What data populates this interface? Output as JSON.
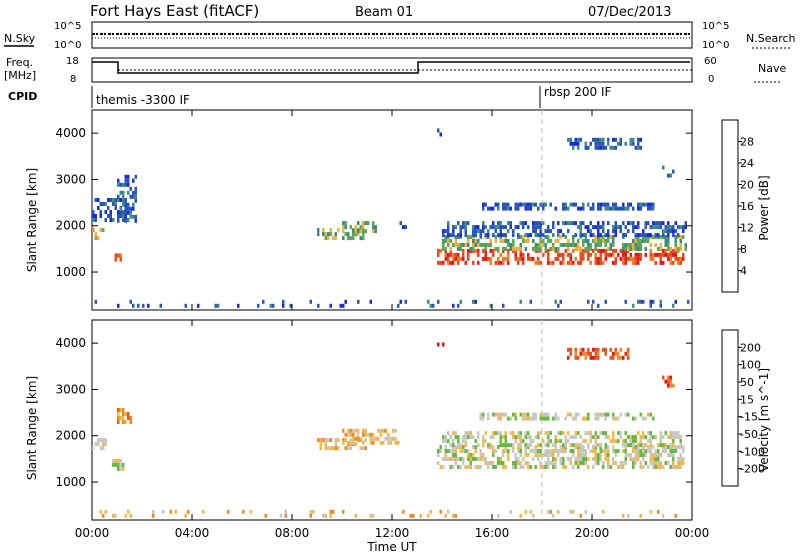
{
  "header": {
    "radar": "Fort Hays East (fitACF)",
    "beam": "Beam 01",
    "date": "07/Dec/2013"
  },
  "top_panels": {
    "nsky_label": "N.Sky",
    "nsky_ticks": [
      "10^5",
      "10^0"
    ],
    "nsearch_label": "N.Search",
    "nsearch_ticks": [
      "10^5",
      "10^0"
    ],
    "freq_label": "Freq.",
    "freq_unit": "[MHz]",
    "freq_ticks": [
      18,
      8
    ],
    "nave_label": "Nave",
    "nave_ticks": [
      60,
      0
    ],
    "cpid_label": "CPID",
    "cpid_segments": [
      {
        "label": "themis -3300 IF",
        "start": 0,
        "end": 18
      },
      {
        "label": "rbsp 200 IF",
        "start": 18,
        "end": 24
      }
    ]
  },
  "x_axis": {
    "title": "Time UT",
    "ticks": [
      "00:00",
      "04:00",
      "08:00",
      "12:00",
      "16:00",
      "20:00",
      "00:00"
    ],
    "tick_hours": [
      0,
      4,
      8,
      12,
      16,
      20,
      24
    ]
  },
  "colors": {
    "power_scale": [
      "#1a2cd8",
      "#2a55b8",
      "#3d8a86",
      "#5aa85c",
      "#f1b23a",
      "#f07d25",
      "#ec4a1c",
      "#e81818"
    ],
    "velocity_scale": [
      "#2542c4",
      "#3a8f84",
      "#66b944",
      "#c8c8c0",
      "#f5b84a",
      "#f08a2b",
      "#ea5320",
      "#e51818"
    ],
    "dashed_marker": "#bbbbbb"
  },
  "chart_data": [
    {
      "type": "heatmap",
      "name": "power",
      "ylabel": "Slant Range [km]",
      "yticks": [
        1000,
        2000,
        3000,
        4000
      ],
      "ylim": [
        180,
        4500
      ],
      "xlim": [
        0,
        24
      ],
      "colorbar": {
        "label": "Power [dB]",
        "ticks": [
          4,
          8,
          12,
          16,
          20,
          24,
          28
        ],
        "range": [
          0,
          32
        ]
      },
      "regions": [
        {
          "t0": 0.0,
          "t1": 0.5,
          "r0": 1650,
          "r1": 1950,
          "level": 4
        },
        {
          "t0": 0.0,
          "t1": 1.5,
          "r0": 2000,
          "r1": 2600,
          "level": 1
        },
        {
          "t0": 0.8,
          "t1": 1.2,
          "r0": 1200,
          "r1": 1400,
          "level": 6
        },
        {
          "t0": 1.0,
          "t1": 1.8,
          "r0": 2000,
          "r1": 3100,
          "level": 1
        },
        {
          "t0": 9.0,
          "t1": 11.0,
          "r0": 1650,
          "r1": 1950,
          "level": 3
        },
        {
          "t0": 10.0,
          "t1": 11.5,
          "r0": 1800,
          "r1": 2100,
          "level": 3
        },
        {
          "t0": 12.3,
          "t1": 12.7,
          "r0": 1900,
          "r1": 2100,
          "level": 1
        },
        {
          "t0": 13.8,
          "t1": 14.2,
          "r0": 3900,
          "r1": 4100,
          "level": 1
        },
        {
          "t0": 13.8,
          "t1": 23.8,
          "r0": 1100,
          "r1": 1500,
          "level": 6
        },
        {
          "t0": 14.0,
          "t1": 23.8,
          "r0": 1400,
          "r1": 1800,
          "level": 3
        },
        {
          "t0": 14.0,
          "t1": 23.8,
          "r0": 1700,
          "r1": 2100,
          "level": 1
        },
        {
          "t0": 15.5,
          "t1": 22.5,
          "r0": 2300,
          "r1": 2500,
          "level": 1
        },
        {
          "t0": 19.0,
          "t1": 22.0,
          "r0": 3600,
          "r1": 3900,
          "level": 1
        },
        {
          "t0": 22.8,
          "t1": 23.3,
          "r0": 3000,
          "r1": 3300,
          "level": 1
        },
        {
          "t0": 0.0,
          "t1": 24.0,
          "r0": 200,
          "r1": 400,
          "level": 1
        }
      ]
    },
    {
      "type": "heatmap",
      "name": "velocity",
      "ylabel": "Slant Range [km]",
      "yticks": [
        1000,
        2000,
        3000,
        4000
      ],
      "ylim": [
        180,
        4500
      ],
      "xlim": [
        0,
        24
      ],
      "colorbar": {
        "label": "Velocity [m s^-1]",
        "ticks": [
          200,
          100,
          50,
          15,
          -15,
          -50,
          -100,
          -200
        ],
        "range": [
          -250,
          250
        ]
      },
      "regions": [
        {
          "t0": 0.0,
          "t1": 0.7,
          "r0": 1650,
          "r1": 1950,
          "level": 3
        },
        {
          "t0": 0.8,
          "t1": 1.3,
          "r0": 1200,
          "r1": 1500,
          "level": 3
        },
        {
          "t0": 1.0,
          "t1": 1.6,
          "r0": 2200,
          "r1": 2600,
          "level": 5
        },
        {
          "t0": 9.0,
          "t1": 11.0,
          "r0": 1650,
          "r1": 1950,
          "level": 4
        },
        {
          "t0": 10.0,
          "t1": 12.3,
          "r0": 1800,
          "r1": 2150,
          "level": 4
        },
        {
          "t0": 13.8,
          "t1": 14.2,
          "r0": 3900,
          "r1": 4100,
          "level": 7
        },
        {
          "t0": 13.8,
          "t1": 23.8,
          "r0": 1200,
          "r1": 1800,
          "level": 3
        },
        {
          "t0": 14.0,
          "t1": 23.8,
          "r0": 1700,
          "r1": 2100,
          "level": 3
        },
        {
          "t0": 15.5,
          "t1": 22.5,
          "r0": 2300,
          "r1": 2500,
          "level": 3
        },
        {
          "t0": 19.0,
          "t1": 21.5,
          "r0": 3600,
          "r1": 3900,
          "level": 6
        },
        {
          "t0": 22.8,
          "t1": 23.3,
          "r0": 3000,
          "r1": 3300,
          "level": 6
        },
        {
          "t0": 0.0,
          "t1": 24.0,
          "r0": 200,
          "r1": 400,
          "level": 4
        }
      ]
    }
  ]
}
